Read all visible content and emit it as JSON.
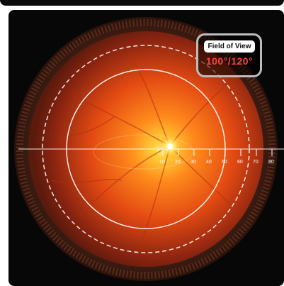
{
  "fov_badge": {
    "title": "Field of View",
    "value": "100°/120°"
  },
  "scale": {
    "ticks": [
      "10",
      "20",
      "30",
      "40",
      "50",
      "60",
      "70",
      "80"
    ]
  },
  "colors": {
    "background": "#070707",
    "fundus_center": "#ffe85a",
    "fundus_mid": "#ff6a14",
    "fundus_outer": "#8a2410",
    "ring": "#ffffff",
    "fov_value": "#ff4040"
  }
}
